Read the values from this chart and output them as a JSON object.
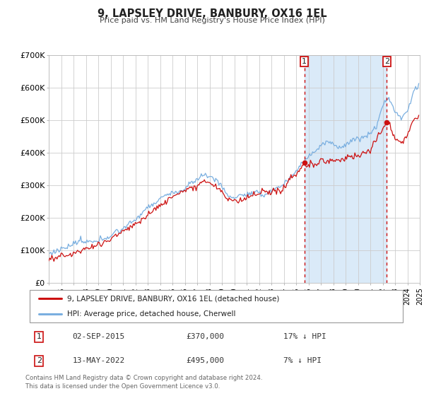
{
  "title": "9, LAPSLEY DRIVE, BANBURY, OX16 1EL",
  "subtitle": "Price paid vs. HM Land Registry's House Price Index (HPI)",
  "ylim": [
    0,
    700000
  ],
  "yticks": [
    0,
    100000,
    200000,
    300000,
    400000,
    500000,
    600000,
    700000
  ],
  "ytick_labels": [
    "£0",
    "£100K",
    "£200K",
    "£300K",
    "£400K",
    "£500K",
    "£600K",
    "£700K"
  ],
  "hpi_color": "#7aafe0",
  "price_color": "#cc1111",
  "shaded_color": "#daeaf8",
  "vline_color": "#cc1111",
  "legend_label1": "9, LAPSLEY DRIVE, BANBURY, OX16 1EL (detached house)",
  "legend_label2": "HPI: Average price, detached house, Cherwell",
  "annotation1_date": "02-SEP-2015",
  "annotation1_price": "£370,000",
  "annotation1_hpi": "17% ↓ HPI",
  "annotation2_date": "13-MAY-2022",
  "annotation2_price": "£495,000",
  "annotation2_hpi": "7% ↓ HPI",
  "footnote1": "Contains HM Land Registry data © Crown copyright and database right 2024.",
  "footnote2": "This data is licensed under the Open Government Licence v3.0.",
  "background_color": "#ffffff",
  "grid_color": "#cccccc",
  "marker1_value": 370000,
  "marker2_value": 495000,
  "marker1_year": 2015.667,
  "marker2_year": 2022.375
}
